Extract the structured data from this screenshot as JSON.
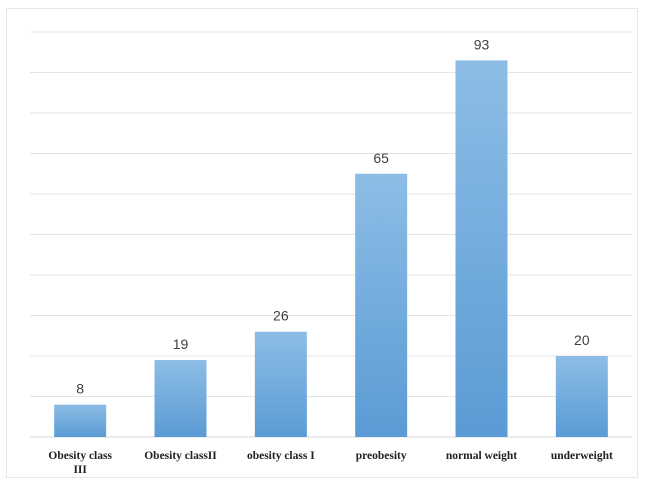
{
  "chart_data": {
    "type": "bar",
    "categories": [
      "Obesity class III",
      "Obesity classII",
      "obesity class I",
      "preobesity",
      "normal weight",
      "underweight"
    ],
    "category_lines": [
      [
        "Obesity class",
        "III"
      ],
      [
        "Obesity classII"
      ],
      [
        "obesity class I"
      ],
      [
        "preobesity"
      ],
      [
        "normal weight"
      ],
      [
        "underweight"
      ]
    ],
    "values": [
      8,
      19,
      26,
      65,
      93,
      20
    ],
    "value_labels": [
      "8",
      "19",
      "26",
      "65",
      "93",
      "20"
    ],
    "ylim": [
      0,
      100
    ],
    "y_grid_step": 10,
    "grid": true,
    "bar_gradient": [
      "#8dbde5",
      "#5a9bd5"
    ]
  }
}
